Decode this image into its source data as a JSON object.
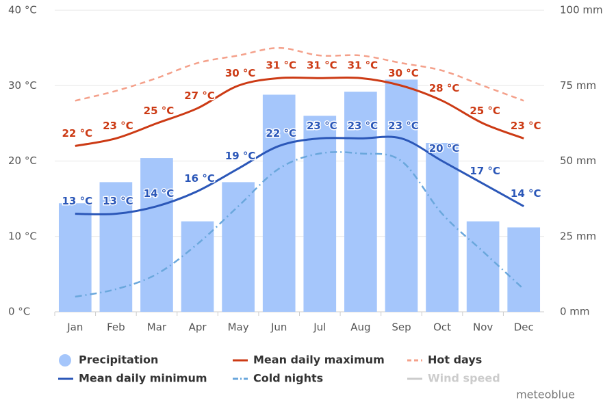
{
  "chart_data": {
    "type": "combo",
    "categories": [
      "Jan",
      "Feb",
      "Mar",
      "Apr",
      "May",
      "Jun",
      "Jul",
      "Aug",
      "Sep",
      "Oct",
      "Nov",
      "Dec"
    ],
    "ylim": [
      0,
      40
    ],
    "yticks": [
      {
        "value": 0,
        "label": "0 °C"
      },
      {
        "value": 10,
        "label": "10 °C"
      },
      {
        "value": 20,
        "label": "20 °C"
      },
      {
        "value": 30,
        "label": "30 °C"
      },
      {
        "value": 40,
        "label": "40 °C"
      }
    ],
    "y2lim": [
      0,
      100
    ],
    "y2ticks": [
      {
        "value": 0,
        "label": "0 mm"
      },
      {
        "value": 25,
        "label": "25 mm"
      },
      {
        "value": 50,
        "label": "50 mm"
      },
      {
        "value": 75,
        "label": "75 mm"
      },
      {
        "value": 100,
        "label": "100 mm"
      }
    ],
    "grid": true,
    "legend": "bottom",
    "series": [
      {
        "name": "Precipitation",
        "type": "bar",
        "axis": "y2",
        "color": "#a5c6fb",
        "values": [
          36,
          43,
          51,
          30,
          43,
          72,
          65,
          73,
          77,
          56,
          30,
          28
        ]
      },
      {
        "name": "Mean daily maximum",
        "type": "line",
        "style": "solid",
        "color": "#cc3a14",
        "values": [
          22,
          23,
          25,
          27,
          30,
          31,
          31,
          31,
          30,
          28,
          25,
          23
        ],
        "value_labels": [
          "22 °C",
          "23 °C",
          "25 °C",
          "27 °C",
          "30 °C",
          "31 °C",
          "31 °C",
          "31 °C",
          "30 °C",
          "28 °C",
          "25 °C",
          "23 °C"
        ]
      },
      {
        "name": "Hot days",
        "type": "line",
        "style": "dash",
        "color": "#f4a08a",
        "values": [
          28,
          29.3,
          31,
          33,
          34,
          35,
          34,
          34,
          33,
          32,
          30,
          28
        ]
      },
      {
        "name": "Mean daily minimum",
        "type": "line",
        "style": "solid",
        "color": "#2b57b8",
        "values": [
          13,
          13,
          14,
          16,
          19,
          22,
          23,
          23,
          23,
          20,
          17,
          14
        ],
        "value_labels": [
          "13 °C",
          "13 °C",
          "14 °C",
          "16 °C",
          "19 °C",
          "22 °C",
          "23 °C",
          "23 °C",
          "23 °C",
          "20 °C",
          "17 °C",
          "14 °C"
        ]
      },
      {
        "name": "Cold nights",
        "type": "line",
        "style": "dashdot",
        "color": "#6aa7dc",
        "values": [
          2,
          3,
          5,
          9,
          14,
          19,
          21,
          21,
          20,
          13,
          8,
          3
        ]
      },
      {
        "name": "Wind speed",
        "type": "line",
        "style": "solid",
        "color": "#cccccc",
        "hidden": true,
        "values": [
          null,
          null,
          null,
          null,
          null,
          null,
          null,
          null,
          null,
          null,
          null,
          null
        ]
      }
    ],
    "credit": "meteoblue"
  }
}
